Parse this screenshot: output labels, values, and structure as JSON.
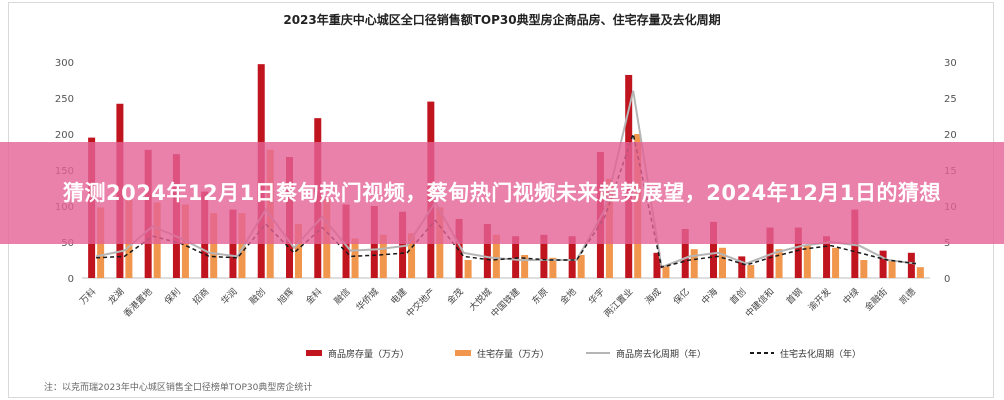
{
  "banner": {
    "title": "猜测2024年12月1日蔡甸热门视频，蔡甸热门视频未来趋势展望，2024年12月1日的猜想"
  },
  "footnote": "注：以克而瑞2023年中心城区销售全口径榜单TOP30典型房企统计",
  "chart_data": {
    "type": "bar",
    "title": "2023年重庆中心城区全口径销售额TOP30典型房企商品房、住宅存量及去化周期",
    "ylim_left": [
      0,
      300
    ],
    "ylim_right": [
      0,
      30
    ],
    "left_ticks": [
      0,
      50,
      100,
      150,
      200,
      250,
      300
    ],
    "right_ticks": [
      0,
      5,
      10,
      15,
      20,
      25,
      30
    ],
    "categories": [
      "万科",
      "龙湖",
      "香港置地",
      "保利",
      "招商",
      "华润",
      "融创",
      "旭辉",
      "金科",
      "融信",
      "华侨城",
      "电建",
      "中交地产",
      "金茂",
      "大悦城",
      "中国铁建",
      "东原",
      "金地",
      "华宇",
      "两江置业",
      "海成",
      "保亿",
      "中海",
      "首创",
      "中建信和",
      "首钢",
      "渝开发",
      "中绿",
      "金融街",
      "凯德"
    ],
    "series": [
      {
        "name": "商品房存量（万方）",
        "axis": "left",
        "kind": "bar",
        "color": "#c0141f",
        "values": [
          195,
          242,
          178,
          172,
          120,
          95,
          297,
          168,
          222,
          102,
          100,
          92,
          245,
          82,
          75,
          58,
          60,
          58,
          175,
          282,
          35,
          68,
          78,
          30,
          70,
          70,
          58,
          95,
          38,
          35
        ]
      },
      {
        "name": "住宅存量（万方）",
        "axis": "left",
        "kind": "bar",
        "color": "#f0964d",
        "values": [
          98,
          112,
          105,
          102,
          90,
          90,
          178,
          75,
          110,
          55,
          60,
          62,
          98,
          25,
          60,
          32,
          28,
          32,
          138,
          200,
          18,
          40,
          42,
          18,
          40,
          45,
          42,
          25,
          25,
          15
        ]
      },
      {
        "name": "商品房去化周期（年）",
        "axis": "right",
        "kind": "line",
        "color": "#b5b5b5",
        "values": [
          3.0,
          3.8,
          7.2,
          5.5,
          3.5,
          3.0,
          9.5,
          4.2,
          8.5,
          3.8,
          4.0,
          4.5,
          10.5,
          3.5,
          2.8,
          2.5,
          2.5,
          2.5,
          9.5,
          26.0,
          1.5,
          3.0,
          3.5,
          2.0,
          3.5,
          4.5,
          5.0,
          4.5,
          2.5,
          2.0
        ]
      },
      {
        "name": "住宅去化周期（年）",
        "axis": "right",
        "kind": "line-dashed",
        "color": "#1a1a1a",
        "values": [
          2.8,
          3.0,
          5.8,
          4.8,
          3.0,
          2.8,
          7.5,
          3.5,
          7.0,
          3.0,
          3.2,
          3.5,
          8.0,
          3.0,
          2.5,
          2.8,
          2.5,
          2.5,
          8.5,
          20.0,
          1.5,
          2.5,
          3.0,
          1.8,
          3.0,
          4.0,
          4.5,
          3.5,
          2.5,
          2.0
        ]
      }
    ],
    "grid": false,
    "legend": "bottom"
  }
}
